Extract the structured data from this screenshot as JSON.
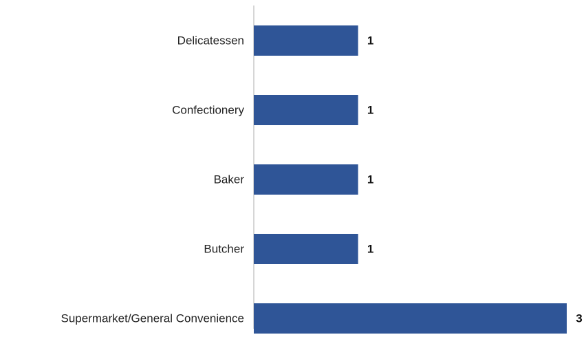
{
  "chart_data": {
    "type": "hbar",
    "categories": [
      "Delicatessen",
      "Confectionery",
      "Baker",
      "Butcher",
      "Supermarket/General Convenience"
    ],
    "values": [
      1,
      1,
      1,
      1,
      3
    ],
    "color": "#2f5597",
    "xlim": [
      0,
      3
    ]
  }
}
